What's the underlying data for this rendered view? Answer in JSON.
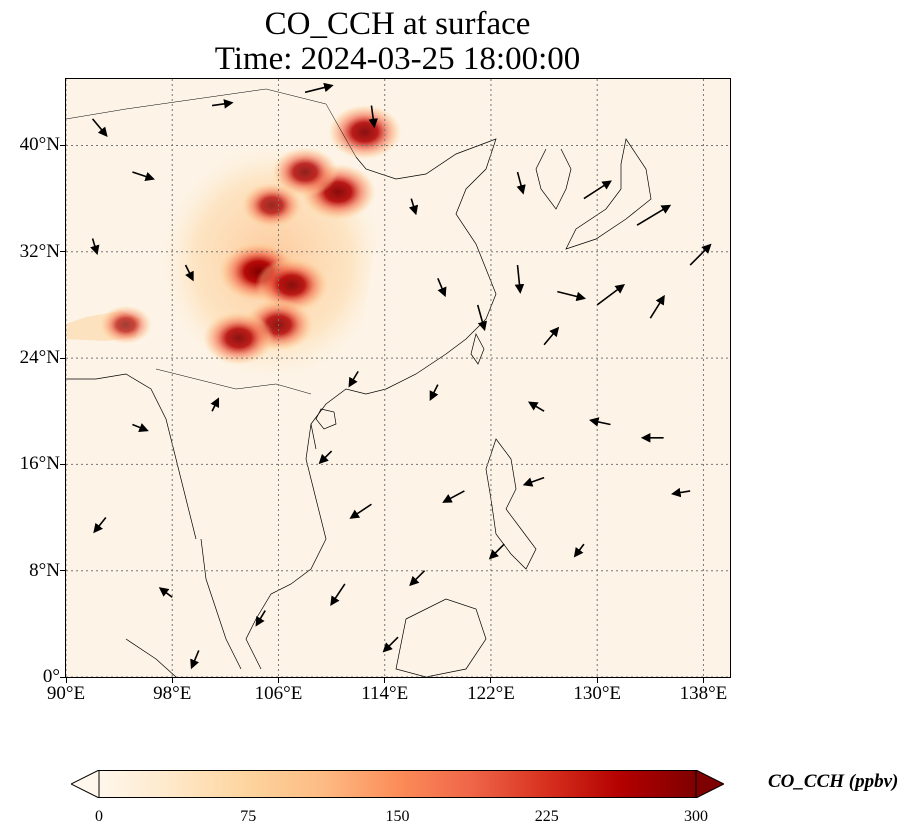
{
  "title": {
    "line1": "CO_CCH at surface",
    "line2": "Time: 2024-03-25 18:00:00"
  },
  "map": {
    "lon_range": [
      90,
      140
    ],
    "lat_range": [
      0,
      45
    ],
    "gridlines": true,
    "gridline_style": "dotted",
    "background_color": "#fdf4e7",
    "coastline_color": "#000000",
    "x_ticks": [
      {
        "value": 90,
        "label": "90°E"
      },
      {
        "value": 98,
        "label": "98°E"
      },
      {
        "value": 106,
        "label": "106°E"
      },
      {
        "value": 114,
        "label": "114°E"
      },
      {
        "value": 122,
        "label": "122°E"
      },
      {
        "value": 130,
        "label": "130°E"
      },
      {
        "value": 138,
        "label": "138°E"
      }
    ],
    "y_ticks": [
      {
        "value": 0,
        "label": "0°"
      },
      {
        "value": 8,
        "label": "8°N"
      },
      {
        "value": 16,
        "label": "16°N"
      },
      {
        "value": 24,
        "label": "24°N"
      },
      {
        "value": 32,
        "label": "32°N"
      },
      {
        "value": 40,
        "label": "40°N"
      }
    ],
    "high_concentration_regions": [
      {
        "lon": 104.5,
        "lat": 30.5,
        "value": 300
      },
      {
        "lon": 107.0,
        "lat": 29.5,
        "value": 260
      },
      {
        "lon": 106.0,
        "lat": 26.5,
        "value": 240
      },
      {
        "lon": 112.5,
        "lat": 41.0,
        "value": 260
      },
      {
        "lon": 110.5,
        "lat": 36.5,
        "value": 270
      },
      {
        "lon": 108.0,
        "lat": 38.0,
        "value": 220
      },
      {
        "lon": 105.5,
        "lat": 35.5,
        "value": 190
      },
      {
        "lon": 103.0,
        "lat": 25.5,
        "value": 250
      },
      {
        "lon": 94.5,
        "lat": 26.5,
        "value": 140
      }
    ],
    "wind_vectors": [
      {
        "lon": 92,
        "lat": 42,
        "u": 1,
        "v": -1.2
      },
      {
        "lon": 95,
        "lat": 38,
        "u": 1.5,
        "v": -0.5
      },
      {
        "lon": 101,
        "lat": 43,
        "u": 1.4,
        "v": 0.2
      },
      {
        "lon": 108,
        "lat": 44,
        "u": 2,
        "v": 0.5
      },
      {
        "lon": 113,
        "lat": 43,
        "u": 0.2,
        "v": -1.5
      },
      {
        "lon": 124,
        "lat": 38,
        "u": 0.4,
        "v": -1.5
      },
      {
        "lon": 129,
        "lat": 36,
        "u": 2,
        "v": 1.3
      },
      {
        "lon": 133,
        "lat": 34,
        "u": 2.5,
        "v": 1.5
      },
      {
        "lon": 137,
        "lat": 31,
        "u": 1.5,
        "v": 1.5
      },
      {
        "lon": 124,
        "lat": 31,
        "u": 0.2,
        "v": -2
      },
      {
        "lon": 127,
        "lat": 29,
        "u": 2,
        "v": -0.5
      },
      {
        "lon": 130,
        "lat": 28,
        "u": 2,
        "v": 1.5
      },
      {
        "lon": 134,
        "lat": 27,
        "u": 1,
        "v": 1.6
      },
      {
        "lon": 121,
        "lat": 28,
        "u": 0.5,
        "v": -1.8
      },
      {
        "lon": 126,
        "lat": 25,
        "u": 1,
        "v": 1.2
      },
      {
        "lon": 118,
        "lat": 22,
        "u": -0.5,
        "v": -1
      },
      {
        "lon": 126,
        "lat": 20,
        "u": -1,
        "v": 0.6
      },
      {
        "lon": 131,
        "lat": 19,
        "u": -1.4,
        "v": 0.3
      },
      {
        "lon": 135,
        "lat": 18,
        "u": -1.5,
        "v": 0
      },
      {
        "lon": 137,
        "lat": 14,
        "u": -1.2,
        "v": -0.2
      },
      {
        "lon": 126,
        "lat": 15,
        "u": -1.4,
        "v": -0.5
      },
      {
        "lon": 120,
        "lat": 14,
        "u": -1.5,
        "v": -0.8
      },
      {
        "lon": 113,
        "lat": 13,
        "u": -1.5,
        "v": -1
      },
      {
        "lon": 117,
        "lat": 8,
        "u": -1,
        "v": -1
      },
      {
        "lon": 111,
        "lat": 7,
        "u": -1,
        "v": -1.5
      },
      {
        "lon": 105,
        "lat": 5,
        "u": -0.6,
        "v": -1
      },
      {
        "lon": 98,
        "lat": 6,
        "u": -0.8,
        "v": 0.6
      },
      {
        "lon": 93,
        "lat": 12,
        "u": -0.8,
        "v": -1
      },
      {
        "lon": 95,
        "lat": 19,
        "u": 1,
        "v": -0.4
      },
      {
        "lon": 101,
        "lat": 20,
        "u": 0.4,
        "v": 0.8
      },
      {
        "lon": 110,
        "lat": 17,
        "u": -0.8,
        "v": -0.8
      },
      {
        "lon": 123,
        "lat": 10,
        "u": -1,
        "v": -1
      },
      {
        "lon": 129,
        "lat": 10,
        "u": -0.6,
        "v": -0.8
      },
      {
        "lon": 115,
        "lat": 3,
        "u": -1,
        "v": -1
      },
      {
        "lon": 100,
        "lat": 2,
        "u": -0.5,
        "v": -1.2
      },
      {
        "lon": 92,
        "lat": 33,
        "u": 0.3,
        "v": -1
      },
      {
        "lon": 99,
        "lat": 31,
        "u": 0.5,
        "v": -1
      },
      {
        "lon": 116,
        "lat": 36,
        "u": 0.3,
        "v": -1
      },
      {
        "lon": 118,
        "lat": 30,
        "u": 0.5,
        "v": -1.2
      },
      {
        "lon": 112,
        "lat": 23,
        "u": -0.6,
        "v": -1
      }
    ]
  },
  "colorbar": {
    "label": "CO_CCH (ppbv)",
    "min": 0,
    "max": 300,
    "extend": "both",
    "colormap": "OrRd",
    "ticks": [
      {
        "value": 0,
        "label": "0"
      },
      {
        "value": 75,
        "label": "75"
      },
      {
        "value": 150,
        "label": "150"
      },
      {
        "value": 225,
        "label": "225"
      },
      {
        "value": 300,
        "label": "300"
      }
    ],
    "colors": [
      "#fff7ec",
      "#fee8c8",
      "#fdd49e",
      "#fdbb84",
      "#fc8d59",
      "#ef6548",
      "#d7301f",
      "#b30000",
      "#7f0000"
    ]
  }
}
